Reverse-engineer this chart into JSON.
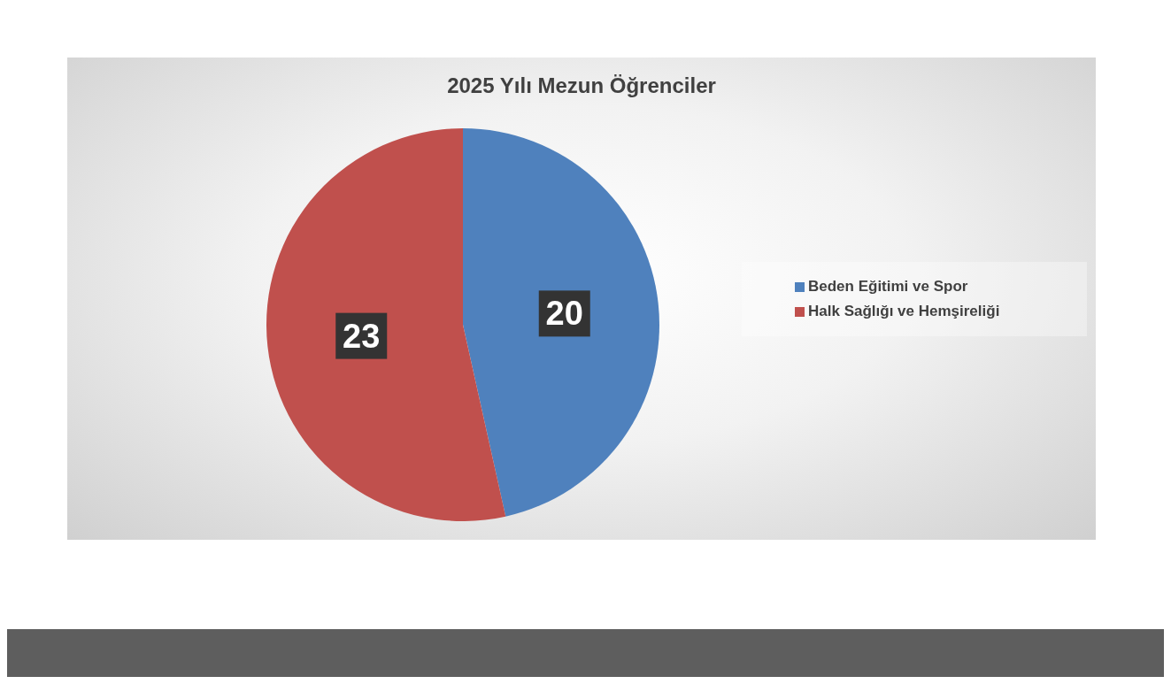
{
  "chart_data": {
    "type": "pie",
    "title": "2025 Yılı Mezun Öğrenciler",
    "categories": [
      "Beden Eğitimi ve Spor",
      "Halk Sağlığı ve Hemşireliği"
    ],
    "values": [
      20,
      23
    ],
    "colors": [
      "#4f81bd",
      "#c0504d"
    ],
    "data_labels": true,
    "legend": "right"
  }
}
